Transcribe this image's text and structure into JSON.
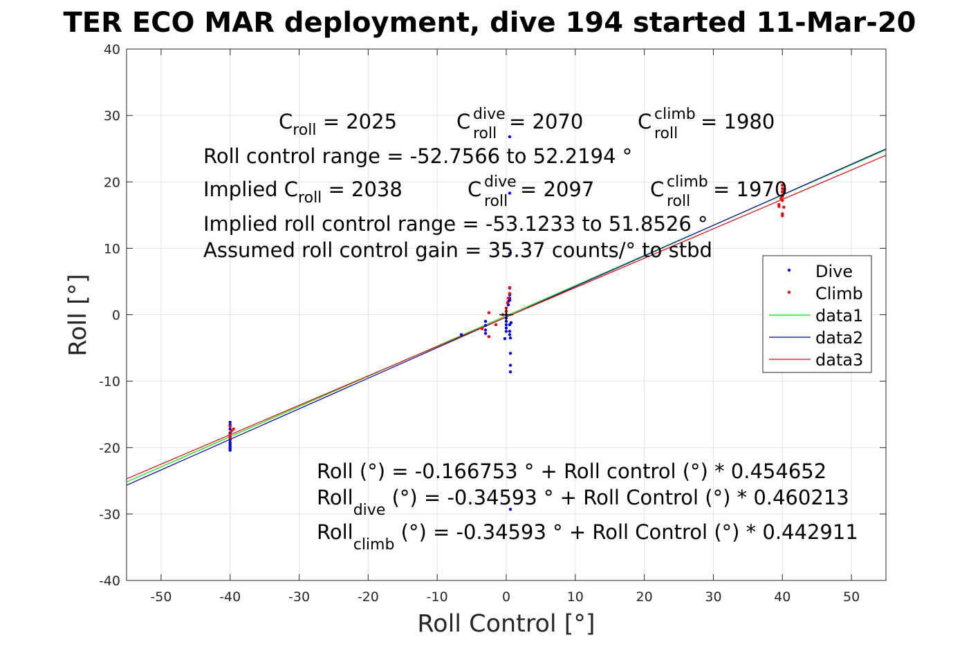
{
  "chart_data": {
    "type": "scatter",
    "title": "TER ECO MAR deployment, dive 194 started 11-Mar-20",
    "xlabel": "Roll Control [°]",
    "ylabel": "Roll [°]",
    "xlim": [
      -55,
      55
    ],
    "ylim": [
      -40,
      40
    ],
    "xticks": [
      -50,
      -40,
      -30,
      -20,
      -10,
      0,
      10,
      20,
      30,
      40,
      50
    ],
    "yticks": [
      -40,
      -30,
      -20,
      -10,
      0,
      10,
      20,
      30,
      40
    ],
    "grid": true,
    "legend_position": "right-middle",
    "legend": [
      "Dive",
      "Climb",
      "data1",
      "data2",
      "data3"
    ],
    "colors": {
      "Dive": "#0000ff",
      "Climb": "#ff0000",
      "data1": "#00e600",
      "data2": "#0000aa",
      "data3": "#e60000"
    },
    "series": [
      {
        "name": "Dive",
        "kind": "points",
        "x": [
          -40,
          -40,
          -40,
          -40,
          -40,
          -40,
          -40,
          -40,
          -40,
          -40,
          -40,
          -40,
          -6.5,
          -3,
          -3,
          -3,
          -3,
          -0.2,
          0,
          0,
          0,
          0,
          0,
          0,
          0,
          0,
          0.3,
          0.3,
          0.5,
          0.5,
          0.5,
          0.5,
          0.5,
          0.5,
          0.5,
          0.5,
          0.5,
          0.5,
          0.6,
          0.6,
          0.6,
          0.6,
          0.6,
          0.7
        ],
        "y": [
          -16.2,
          -16.6,
          -17.2,
          -17.8,
          -18.4,
          -18.8,
          -19.2,
          -19.5,
          -19.8,
          -20.1,
          -20.4,
          -18.0,
          -3,
          -1,
          -1.6,
          -2.3,
          -2.8,
          -3.6,
          -2.5,
          -2,
          -1.5,
          -1,
          -0.5,
          0,
          0.5,
          1,
          1.5,
          2,
          26.8,
          18.3,
          9.2,
          4,
          3,
          2.5,
          2.2,
          -1.5,
          -2.5,
          -3,
          -3.5,
          -5.8,
          -7.6,
          -8.6,
          -29.3,
          -1.2
        ]
      },
      {
        "name": "Climb",
        "kind": "points",
        "x": [
          -39.8,
          -40,
          -40,
          -40,
          -39.5,
          -3.5,
          -2.5,
          -2.5,
          -1.5,
          -0.5,
          0,
          0,
          0.2,
          0.3,
          0.5,
          0.5,
          39.5,
          39.5,
          39.8,
          40,
          40,
          40,
          40,
          40,
          40,
          40,
          40,
          40.2,
          40.3
        ],
        "y": [
          -17.5,
          -18,
          -18.5,
          -16.8,
          -17.2,
          -2.1,
          -3.3,
          0.3,
          -1.5,
          0,
          0.5,
          1,
          1.8,
          2.5,
          3.2,
          4.1,
          16.3,
          16.6,
          17.5,
          18,
          18.5,
          19,
          19.5,
          17.8,
          17.2,
          15.2,
          14.9,
          16.2,
          18.8
        ]
      },
      {
        "name": "data1",
        "kind": "line",
        "x": [
          -55,
          55
        ],
        "y": [
          -25.18,
          24.84
        ]
      },
      {
        "name": "data2",
        "kind": "line",
        "x": [
          -55,
          55
        ],
        "y": [
          -25.66,
          24.97
        ]
      },
      {
        "name": "data3",
        "kind": "line",
        "x": [
          -55,
          55
        ],
        "y": [
          -24.71,
          24.01
        ]
      }
    ],
    "annotations": {
      "line1": {
        "c_roll_base": "C",
        "c_roll_sub": "roll",
        "c_roll_val": " = 2025",
        "c_dive_base": "C",
        "c_dive_sup": "dive",
        "c_dive_sub": "roll",
        "c_dive_val": " = 2070",
        "c_climb_base": "C",
        "c_climb_sup": "climb",
        "c_climb_sub": "roll",
        "c_climb_val": " = 1980"
      },
      "line2": "Roll control range = -52.7566 to 52.2194 °",
      "line3": {
        "implied_base": "Implied C",
        "implied_sub": "roll",
        "implied_val": " = 2038",
        "dive_base": "C",
        "dive_sup": "dive",
        "dive_sub": "roll",
        "dive_val": " = 2097",
        "climb_base": "C",
        "climb_sup": "climb",
        "climb_sub": "roll",
        "climb_val": " = 1970"
      },
      "line4": "Implied roll control range = -53.1233 to 51.8526 °",
      "line5": "Assumed roll control gain = 35.37 counts/° to stbd",
      "fit1": "Roll (°) = -0.166753 ° + Roll control (°) * 0.454652",
      "fit2": {
        "base": "Roll",
        "sub": "dive",
        "rest": " (°) = -0.34593 ° + Roll Control (°) * 0.460213"
      },
      "fit3": {
        "base": "Roll",
        "sub": "climb",
        "rest": " (°) = -0.34593 ° + Roll Control (°) * 0.442911"
      }
    }
  }
}
